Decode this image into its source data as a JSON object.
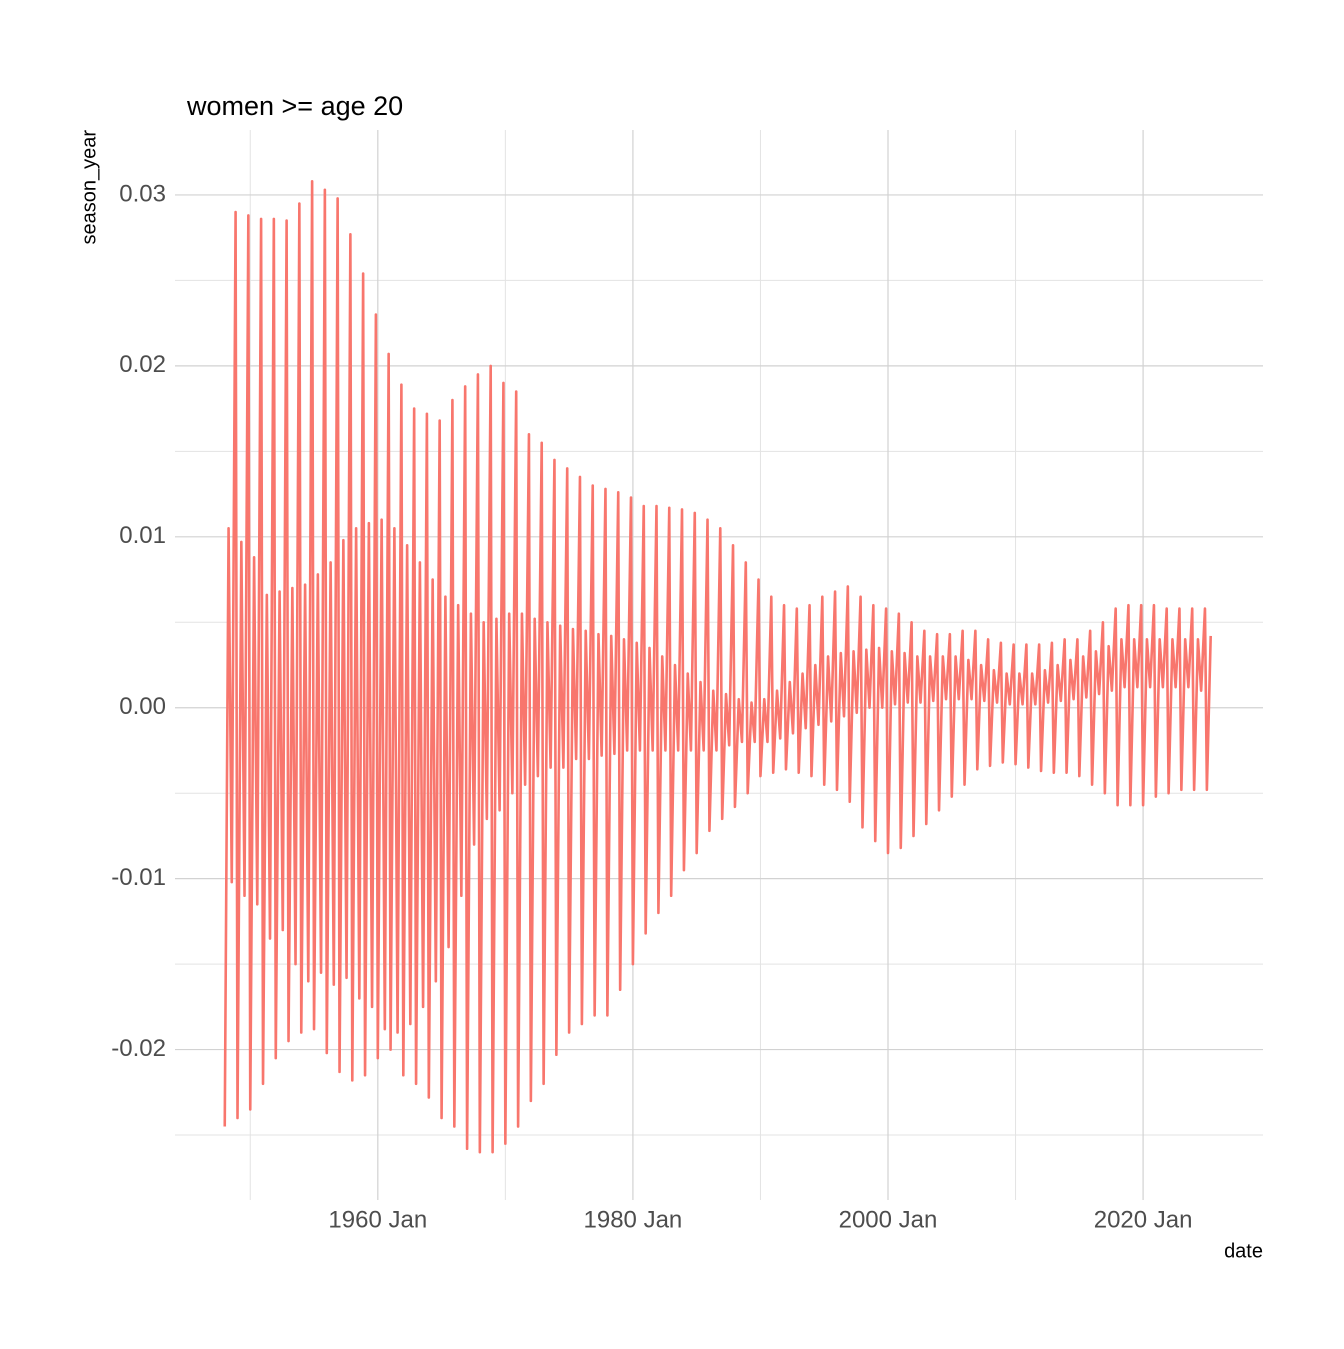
{
  "chart_data": {
    "type": "line",
    "title": "women >= age 20",
    "x_label": "date",
    "y_label": "season_year",
    "color": "#F8766D",
    "grid": true,
    "xlim": [
      1944.1,
      2029.4
    ],
    "ylim": [
      -0.0288,
      0.0338
    ],
    "xticks": [
      {
        "value": 1960,
        "label": "1960 Jan"
      },
      {
        "value": 1980,
        "label": "1980 Jan"
      },
      {
        "value": 2000,
        "label": "2000 Jan"
      },
      {
        "value": 2020,
        "label": "2020 Jan"
      }
    ],
    "x_minor_ticks": [
      1950,
      1970,
      1990,
      2010
    ],
    "yticks": [
      -0.02,
      -0.01,
      {
        "value": 0,
        "label": "0.00"
      },
      0.01,
      0.02,
      0.03
    ],
    "y_minor_ticks": [
      -0.025,
      -0.015,
      -0.005,
      0.005,
      0.015,
      0.025
    ],
    "x": [
      1948,
      1948.3,
      1948.55,
      1948.85,
      1949,
      1949.3,
      1949.55,
      1949.85,
      1950,
      1950.3,
      1950.55,
      1950.85,
      1951,
      1951.3,
      1951.55,
      1951.85,
      1952,
      1952.3,
      1952.55,
      1952.85,
      1953,
      1953.3,
      1953.55,
      1953.85,
      1954,
      1954.3,
      1954.55,
      1954.85,
      1955,
      1955.3,
      1955.55,
      1955.85,
      1956,
      1956.3,
      1956.55,
      1956.85,
      1957,
      1957.3,
      1957.55,
      1957.85,
      1958,
      1958.3,
      1958.55,
      1958.85,
      1959,
      1959.3,
      1959.55,
      1959.85,
      1960,
      1960.3,
      1960.55,
      1960.85,
      1961,
      1961.3,
      1961.55,
      1961.85,
      1962,
      1962.3,
      1962.55,
      1962.85,
      1963,
      1963.3,
      1963.55,
      1963.85,
      1964,
      1964.3,
      1964.55,
      1964.85,
      1965,
      1965.3,
      1965.55,
      1965.85,
      1966,
      1966.3,
      1966.55,
      1966.85,
      1967,
      1967.3,
      1967.55,
      1967.85,
      1968,
      1968.3,
      1968.55,
      1968.85,
      1969,
      1969.3,
      1969.55,
      1969.85,
      1970,
      1970.3,
      1970.55,
      1970.85,
      1971,
      1971.3,
      1971.55,
      1971.85,
      1972,
      1972.3,
      1972.55,
      1972.85,
      1973,
      1973.3,
      1973.55,
      1973.85,
      1974,
      1974.3,
      1974.55,
      1974.85,
      1975,
      1975.3,
      1975.55,
      1975.85,
      1976,
      1976.3,
      1976.55,
      1976.85,
      1977,
      1977.3,
      1977.55,
      1977.85,
      1978,
      1978.3,
      1978.55,
      1978.85,
      1979,
      1979.3,
      1979.55,
      1979.85,
      1980,
      1980.3,
      1980.55,
      1980.85,
      1981,
      1981.3,
      1981.55,
      1981.85,
      1982,
      1982.3,
      1982.55,
      1982.85,
      1983,
      1983.3,
      1983.55,
      1983.85,
      1984,
      1984.3,
      1984.55,
      1984.85,
      1985,
      1985.3,
      1985.55,
      1985.85,
      1986,
      1986.3,
      1986.55,
      1986.85,
      1987,
      1987.3,
      1987.55,
      1987.85,
      1988,
      1988.3,
      1988.55,
      1988.85,
      1989,
      1989.3,
      1989.55,
      1989.85,
      1990,
      1990.3,
      1990.55,
      1990.85,
      1991,
      1991.3,
      1991.55,
      1991.85,
      1992,
      1992.3,
      1992.55,
      1992.85,
      1993,
      1993.3,
      1993.55,
      1993.85,
      1994,
      1994.3,
      1994.55,
      1994.85,
      1995,
      1995.3,
      1995.55,
      1995.85,
      1996,
      1996.3,
      1996.55,
      1996.85,
      1997,
      1997.3,
      1997.55,
      1997.85,
      1998,
      1998.3,
      1998.55,
      1998.85,
      1999,
      1999.3,
      1999.55,
      1999.85,
      2000,
      2000.3,
      2000.55,
      2000.85,
      2001,
      2001.3,
      2001.55,
      2001.85,
      2002,
      2002.3,
      2002.55,
      2002.85,
      2003,
      2003.3,
      2003.55,
      2003.85,
      2004,
      2004.3,
      2004.55,
      2004.85,
      2005,
      2005.3,
      2005.55,
      2005.85,
      2006,
      2006.3,
      2006.55,
      2006.85,
      2007,
      2007.3,
      2007.55,
      2007.85,
      2008,
      2008.3,
      2008.55,
      2008.85,
      2009,
      2009.3,
      2009.55,
      2009.85,
      2010,
      2010.3,
      2010.55,
      2010.85,
      2011,
      2011.3,
      2011.55,
      2011.85,
      2012,
      2012.3,
      2012.55,
      2012.85,
      2013,
      2013.3,
      2013.55,
      2013.85,
      2014,
      2014.3,
      2014.55,
      2014.85,
      2015,
      2015.3,
      2015.55,
      2015.85,
      2016,
      2016.3,
      2016.55,
      2016.85,
      2017,
      2017.3,
      2017.55,
      2017.85,
      2018,
      2018.3,
      2018.55,
      2018.85,
      2019,
      2019.3,
      2019.55,
      2019.85,
      2020,
      2020.3,
      2020.55,
      2020.85,
      2021,
      2021.3,
      2021.55,
      2021.85,
      2022,
      2022.3,
      2022.55,
      2022.85,
      2023,
      2023.3,
      2023.55,
      2023.85,
      2024,
      2024.3,
      2024.55,
      2024.85,
      2025,
      2025.3
    ],
    "values": [
      -0.0245,
      0.0105,
      -0.0102,
      0.029,
      -0.024,
      0.0097,
      -0.011,
      0.0288,
      -0.0235,
      0.0088,
      -0.0115,
      0.0286,
      -0.022,
      0.0066,
      -0.0135,
      0.0286,
      -0.0205,
      0.0068,
      -0.013,
      0.0285,
      -0.0195,
      0.007,
      -0.015,
      0.0295,
      -0.019,
      0.0072,
      -0.016,
      0.0308,
      -0.0188,
      0.0078,
      -0.0155,
      0.0303,
      -0.0202,
      0.0085,
      -0.0162,
      0.0298,
      -0.0213,
      0.0098,
      -0.0158,
      0.0277,
      -0.0218,
      0.0105,
      -0.017,
      0.0254,
      -0.0215,
      0.0108,
      -0.0175,
      0.023,
      -0.0205,
      0.011,
      -0.0188,
      0.0207,
      -0.02,
      0.0105,
      -0.019,
      0.0189,
      -0.0215,
      0.0095,
      -0.0185,
      0.0175,
      -0.022,
      0.0085,
      -0.0175,
      0.0172,
      -0.0228,
      0.0075,
      -0.016,
      0.0168,
      -0.024,
      0.0065,
      -0.014,
      0.018,
      -0.0245,
      0.006,
      -0.011,
      0.0188,
      -0.0258,
      0.0055,
      -0.008,
      0.0195,
      -0.026,
      0.005,
      -0.0065,
      0.02,
      -0.026,
      0.0052,
      -0.006,
      0.019,
      -0.0255,
      0.0055,
      -0.005,
      0.0185,
      -0.0245,
      0.0055,
      -0.0045,
      0.016,
      -0.023,
      0.0052,
      -0.004,
      0.0155,
      -0.022,
      0.005,
      -0.0035,
      0.0145,
      -0.0203,
      0.0048,
      -0.0035,
      0.014,
      -0.019,
      0.0046,
      -0.003,
      0.0135,
      -0.0185,
      0.0045,
      -0.003,
      0.013,
      -0.018,
      0.0043,
      -0.0028,
      0.0128,
      -0.018,
      0.0042,
      -0.0027,
      0.0126,
      -0.0165,
      0.004,
      -0.0025,
      0.0123,
      -0.015,
      0.0038,
      -0.0025,
      0.0118,
      -0.0132,
      0.0035,
      -0.0025,
      0.0118,
      -0.012,
      0.003,
      -0.0025,
      0.0117,
      -0.011,
      0.0025,
      -0.0025,
      0.0116,
      -0.0095,
      0.002,
      -0.0025,
      0.0114,
      -0.0085,
      0.0015,
      -0.0025,
      0.011,
      -0.0072,
      0.001,
      -0.0025,
      0.0105,
      -0.0065,
      0.0008,
      -0.0022,
      0.0095,
      -0.0058,
      0.0005,
      -0.002,
      0.0085,
      -0.005,
      0.0003,
      -0.002,
      0.0075,
      -0.004,
      0.0005,
      -0.002,
      0.0065,
      -0.0038,
      0.001,
      -0.0018,
      0.006,
      -0.0036,
      0.0015,
      -0.0015,
      0.0058,
      -0.0038,
      0.002,
      -0.0012,
      0.006,
      -0.004,
      0.0025,
      -0.001,
      0.0065,
      -0.0045,
      0.003,
      -0.0008,
      0.0068,
      -0.0048,
      0.0032,
      -0.0005,
      0.0071,
      -0.0055,
      0.0033,
      -0.0003,
      0.0065,
      -0.007,
      0.0034,
      0,
      0.006,
      -0.0078,
      0.0035,
      0,
      0.0058,
      -0.0085,
      0.0033,
      0.0002,
      0.0055,
      -0.0082,
      0.0032,
      0.0003,
      0.005,
      -0.0075,
      0.003,
      0.0003,
      0.0045,
      -0.0068,
      0.003,
      0.0004,
      0.0043,
      -0.006,
      0.003,
      0.0005,
      0.0043,
      -0.0052,
      0.003,
      0.0005,
      0.0045,
      -0.0045,
      0.0028,
      0.0005,
      0.0045,
      -0.0036,
      0.0025,
      0.0004,
      0.004,
      -0.0034,
      0.0022,
      0.0003,
      0.0038,
      -0.0032,
      0.002,
      0.0002,
      0.0037,
      -0.0033,
      0.002,
      0.0002,
      0.0037,
      -0.0035,
      0.002,
      0.0002,
      0.0037,
      -0.0037,
      0.0022,
      0.0003,
      0.0038,
      -0.0038,
      0.0025,
      0.0004,
      0.004,
      -0.0038,
      0.0028,
      0.0005,
      0.004,
      -0.004,
      0.003,
      0.0006,
      0.0045,
      -0.0045,
      0.0033,
      0.0008,
      0.005,
      -0.005,
      0.0036,
      0.001,
      0.0058,
      -0.0057,
      0.004,
      0.0012,
      0.006,
      -0.0057,
      0.004,
      0.0012,
      0.006,
      -0.0057,
      0.004,
      0.0012,
      0.006,
      -0.0052,
      0.004,
      0.0012,
      0.0058,
      -0.005,
      0.004,
      0.0012,
      0.0058,
      -0.0048,
      0.004,
      0.0012,
      0.0058,
      -0.0048,
      0.004,
      0.001,
      0.0058,
      -0.0048,
      0.0042
    ]
  }
}
